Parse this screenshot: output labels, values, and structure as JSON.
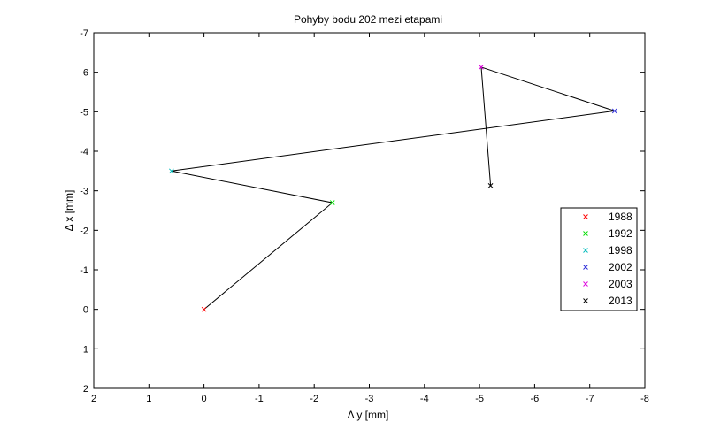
{
  "chart_data": {
    "type": "line",
    "title": "Pohyby bodu 202 mezi etapami",
    "xlabel": "Δ y [mm]",
    "ylabel": "Δ x [mm]",
    "xlim": [
      2,
      -8
    ],
    "ylim": [
      2,
      -7
    ],
    "x_reversed": true,
    "y_reversed": true,
    "grid": false,
    "xticks": [
      2,
      1,
      0,
      -1,
      -2,
      -3,
      -4,
      -5,
      -6,
      -7,
      -8
    ],
    "yticks": [
      -7,
      -6,
      -5,
      -4,
      -3,
      -2,
      -1,
      0,
      1,
      2
    ],
    "path_color": "#000000",
    "points": [
      {
        "name": "1988",
        "x": 0.0,
        "y": 0.0,
        "color": "#ff0000"
      },
      {
        "name": "1992",
        "x": -2.33,
        "y": -2.7,
        "color": "#00dd00"
      },
      {
        "name": "1998",
        "x": 0.59,
        "y": -3.5,
        "color": "#00bbbb"
      },
      {
        "name": "2002",
        "x": -7.45,
        "y": -5.02,
        "color": "#2a2ad8"
      },
      {
        "name": "2003",
        "x": -5.03,
        "y": -6.13,
        "color": "#dd00dd"
      },
      {
        "name": "2013",
        "x": -5.2,
        "y": -3.13,
        "color": "#000000"
      }
    ],
    "legend_position": "right"
  }
}
